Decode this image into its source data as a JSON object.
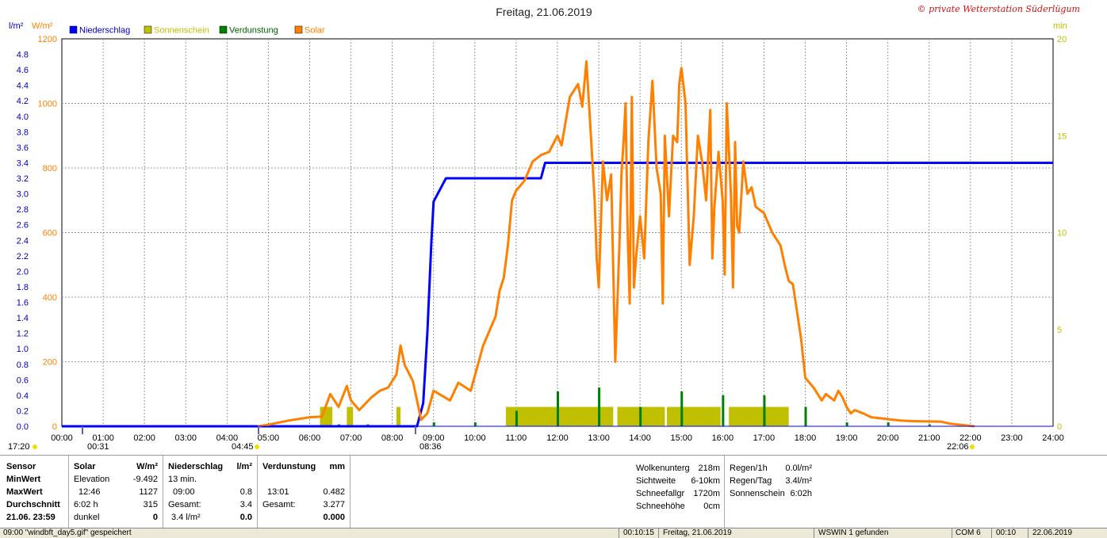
{
  "title": "Freitag, 21.06.2019",
  "copyright": "© private Wetterstation Süderlügum",
  "legend": [
    {
      "label": "Niederschlag",
      "color": "#0000ff"
    },
    {
      "label": "Sonnenschein",
      "color": "#c0c000"
    },
    {
      "label": "Verdunstung",
      "color": "#008000"
    },
    {
      "label": "Solar",
      "color": "#ff8000"
    }
  ],
  "axis_units": {
    "rain": "l/m²",
    "solar": "W/m²",
    "minutes": "min"
  },
  "markers": {
    "sunrise_side": "17:20",
    "sun_a": "00:31",
    "sun_rise_time": "04:45",
    "sun_b": "08:36",
    "sunset": "22:06"
  },
  "chart_data": {
    "type": "line",
    "title": "Freitag, 21.06.2019",
    "x_ticks": [
      "00:00",
      "01:00",
      "02:00",
      "03:00",
      "04:00",
      "05:00",
      "06:00",
      "07:00",
      "08:00",
      "09:00",
      "10:00",
      "11:00",
      "12:00",
      "13:00",
      "14:00",
      "15:00",
      "16:00",
      "17:00",
      "18:00",
      "19:00",
      "20:00",
      "21:00",
      "22:00",
      "23:00",
      "24:00"
    ],
    "xlim": [
      0,
      24
    ],
    "y_left_rain": {
      "label": "l/m²",
      "range": [
        0,
        5.0
      ],
      "ticks": [
        "0.0",
        "0.2",
        "0.4",
        "0.6",
        "0.8",
        "1.0",
        "1.2",
        "1.4",
        "1.6",
        "1.8",
        "2.0",
        "2.2",
        "2.4",
        "2.6",
        "2.8",
        "3.0",
        "3.2",
        "3.4",
        "3.6",
        "3.8",
        "4.0",
        "4.2",
        "4.4",
        "4.6",
        "4.8"
      ]
    },
    "y_left_solar": {
      "label": "W/m²",
      "range": [
        0,
        1200
      ],
      "ticks": [
        "0",
        "200",
        "400",
        "600",
        "800",
        "1000",
        "1200"
      ]
    },
    "y_right_minutes": {
      "label": "min",
      "range": [
        0,
        20
      ],
      "ticks": [
        "0",
        "5",
        "10",
        "15",
        "20"
      ]
    },
    "grid": true,
    "series": [
      {
        "name": "Niederschlag",
        "axis": "rain",
        "color": "#0000ff",
        "points": [
          [
            0,
            0
          ],
          [
            8.6,
            0
          ],
          [
            8.75,
            0.3
          ],
          [
            8.85,
            1.2
          ],
          [
            8.95,
            2.4
          ],
          [
            9.0,
            2.9
          ],
          [
            9.1,
            3.0
          ],
          [
            9.2,
            3.1
          ],
          [
            9.3,
            3.2
          ],
          [
            11.6,
            3.2
          ],
          [
            11.7,
            3.4
          ],
          [
            24,
            3.4
          ]
        ]
      },
      {
        "name": "Solar",
        "axis": "solar",
        "color": "#ff8000",
        "points": [
          [
            4.75,
            0
          ],
          [
            5.0,
            5
          ],
          [
            5.5,
            18
          ],
          [
            6.0,
            28
          ],
          [
            6.3,
            30
          ],
          [
            6.5,
            100
          ],
          [
            6.7,
            60
          ],
          [
            6.9,
            125
          ],
          [
            7.0,
            80
          ],
          [
            7.2,
            50
          ],
          [
            7.5,
            90
          ],
          [
            7.7,
            110
          ],
          [
            7.9,
            120
          ],
          [
            8.1,
            160
          ],
          [
            8.2,
            250
          ],
          [
            8.3,
            190
          ],
          [
            8.5,
            140
          ],
          [
            8.6,
            80
          ],
          [
            8.7,
            20
          ],
          [
            8.85,
            40
          ],
          [
            9.0,
            110
          ],
          [
            9.2,
            95
          ],
          [
            9.4,
            80
          ],
          [
            9.6,
            135
          ],
          [
            9.9,
            110
          ],
          [
            10.2,
            250
          ],
          [
            10.5,
            340
          ],
          [
            10.6,
            420
          ],
          [
            10.7,
            460
          ],
          [
            10.8,
            560
          ],
          [
            10.9,
            700
          ],
          [
            11.0,
            730
          ],
          [
            11.2,
            760
          ],
          [
            11.4,
            820
          ],
          [
            11.6,
            840
          ],
          [
            11.8,
            850
          ],
          [
            12.0,
            900
          ],
          [
            12.1,
            870
          ],
          [
            12.3,
            1020
          ],
          [
            12.5,
            1060
          ],
          [
            12.6,
            990
          ],
          [
            12.7,
            1130
          ],
          [
            12.8,
            920
          ],
          [
            12.9,
            700
          ],
          [
            12.95,
            520
          ],
          [
            13.0,
            430
          ],
          [
            13.1,
            820
          ],
          [
            13.2,
            700
          ],
          [
            13.3,
            780
          ],
          [
            13.4,
            200
          ],
          [
            13.5,
            560
          ],
          [
            13.55,
            780
          ],
          [
            13.6,
            880
          ],
          [
            13.65,
            1000
          ],
          [
            13.7,
            600
          ],
          [
            13.75,
            380
          ],
          [
            13.8,
            1020
          ],
          [
            13.85,
            430
          ],
          [
            13.9,
            520
          ],
          [
            14.0,
            650
          ],
          [
            14.1,
            520
          ],
          [
            14.2,
            880
          ],
          [
            14.3,
            1070
          ],
          [
            14.4,
            800
          ],
          [
            14.5,
            720
          ],
          [
            14.55,
            380
          ],
          [
            14.6,
            900
          ],
          [
            14.7,
            650
          ],
          [
            14.8,
            900
          ],
          [
            14.9,
            880
          ],
          [
            14.95,
            1060
          ],
          [
            15.0,
            1110
          ],
          [
            15.1,
            1000
          ],
          [
            15.2,
            500
          ],
          [
            15.3,
            650
          ],
          [
            15.4,
            900
          ],
          [
            15.5,
            820
          ],
          [
            15.6,
            700
          ],
          [
            15.7,
            980
          ],
          [
            15.75,
            520
          ],
          [
            15.8,
            680
          ],
          [
            15.9,
            850
          ],
          [
            16.0,
            700
          ],
          [
            16.05,
            470
          ],
          [
            16.1,
            1000
          ],
          [
            16.2,
            720
          ],
          [
            16.25,
            430
          ],
          [
            16.3,
            880
          ],
          [
            16.35,
            620
          ],
          [
            16.4,
            600
          ],
          [
            16.5,
            820
          ],
          [
            16.6,
            720
          ],
          [
            16.7,
            740
          ],
          [
            16.8,
            680
          ],
          [
            17.0,
            660
          ],
          [
            17.2,
            600
          ],
          [
            17.4,
            560
          ],
          [
            17.5,
            500
          ],
          [
            17.6,
            450
          ],
          [
            17.7,
            440
          ],
          [
            17.9,
            270
          ],
          [
            18.0,
            150
          ],
          [
            18.2,
            120
          ],
          [
            18.4,
            80
          ],
          [
            18.5,
            100
          ],
          [
            18.7,
            80
          ],
          [
            18.8,
            110
          ],
          [
            18.9,
            90
          ],
          [
            19.0,
            60
          ],
          [
            19.1,
            40
          ],
          [
            19.2,
            50
          ],
          [
            19.4,
            40
          ],
          [
            19.6,
            28
          ],
          [
            19.8,
            25
          ],
          [
            20.0,
            22
          ],
          [
            20.3,
            18
          ],
          [
            20.6,
            16
          ],
          [
            21.0,
            15
          ],
          [
            21.3,
            14
          ],
          [
            21.5,
            8
          ],
          [
            21.8,
            4
          ],
          [
            22.1,
            0
          ]
        ]
      }
    ],
    "bars": [
      {
        "name": "Sonnenschein",
        "axis": "minutes",
        "color": "#c0c000",
        "intervals": [
          [
            6.25,
            6.55,
            1
          ],
          [
            6.9,
            7.05,
            1
          ],
          [
            8.1,
            8.2,
            1
          ],
          [
            10.75,
            13.35,
            1
          ],
          [
            13.45,
            14.6,
            1
          ],
          [
            14.65,
            15.95,
            1
          ],
          [
            16.15,
            17.6,
            1
          ]
        ]
      },
      {
        "name": "Verdunstung",
        "axis": "minutes",
        "color": "#008000",
        "spikes": [
          [
            6.7,
            0.1
          ],
          [
            7.4,
            0.1
          ],
          [
            9.0,
            0.2
          ],
          [
            10.0,
            0.2
          ],
          [
            11.0,
            0.8
          ],
          [
            12.0,
            1.8
          ],
          [
            13.0,
            2.0
          ],
          [
            14.0,
            1.0
          ],
          [
            15.0,
            1.8
          ],
          [
            16.0,
            1.6
          ],
          [
            17.0,
            1.6
          ],
          [
            18.0,
            1.0
          ],
          [
            19.0,
            0.2
          ],
          [
            20.0,
            0.2
          ],
          [
            21.0,
            0.1
          ]
        ]
      }
    ]
  },
  "stats": {
    "sensor_head": "Sensor",
    "row_labels": [
      "MinWert",
      "MaxWert",
      "Durchschnitt",
      "21.06. 23:59"
    ],
    "solar": {
      "head": "Solar",
      "unit": "W/m²",
      "rows": [
        [
          "Elevation",
          "-9.492"
        ],
        [
          "12:46",
          "1127"
        ],
        [
          "6:02 h",
          "315"
        ],
        [
          "dunkel",
          "0"
        ]
      ]
    },
    "rain": {
      "head": "Niederschlag",
      "unit": "l/m²",
      "rows": [
        [
          "13 min.",
          ""
        ],
        [
          "09:00",
          "0.8"
        ],
        [
          "Gesamt:",
          "3.4"
        ],
        [
          "3.4 l/m²",
          "0.0"
        ]
      ]
    },
    "evap": {
      "head": "Verdunstung",
      "unit": "mm",
      "rows": [
        [
          "",
          ""
        ],
        [
          "13:01",
          "0.482"
        ],
        [
          "Gesamt:",
          "3.277"
        ],
        [
          "",
          "0.000"
        ]
      ]
    },
    "weather": [
      [
        "Wolkenunterg",
        "218m"
      ],
      [
        "Sichtweite",
        "6-10km"
      ],
      [
        "Schneefallgr",
        "1720m"
      ],
      [
        "Schneehöhe",
        "0cm"
      ]
    ],
    "rainbox": [
      [
        "Regen/1h",
        "0.0l/m²"
      ],
      [
        "Regen/Tag",
        "3.4l/m²"
      ],
      [
        "Sonnenschein",
        "6:02h"
      ]
    ]
  },
  "status_bar": [
    "09:00 \"windbft_day5.gif\" gespeichert",
    "00:10:15",
    "Freitag, 21.06.2019",
    "WSWIN 1 gefunden",
    "COM 6",
    "00:10",
    "22.06.2019"
  ]
}
